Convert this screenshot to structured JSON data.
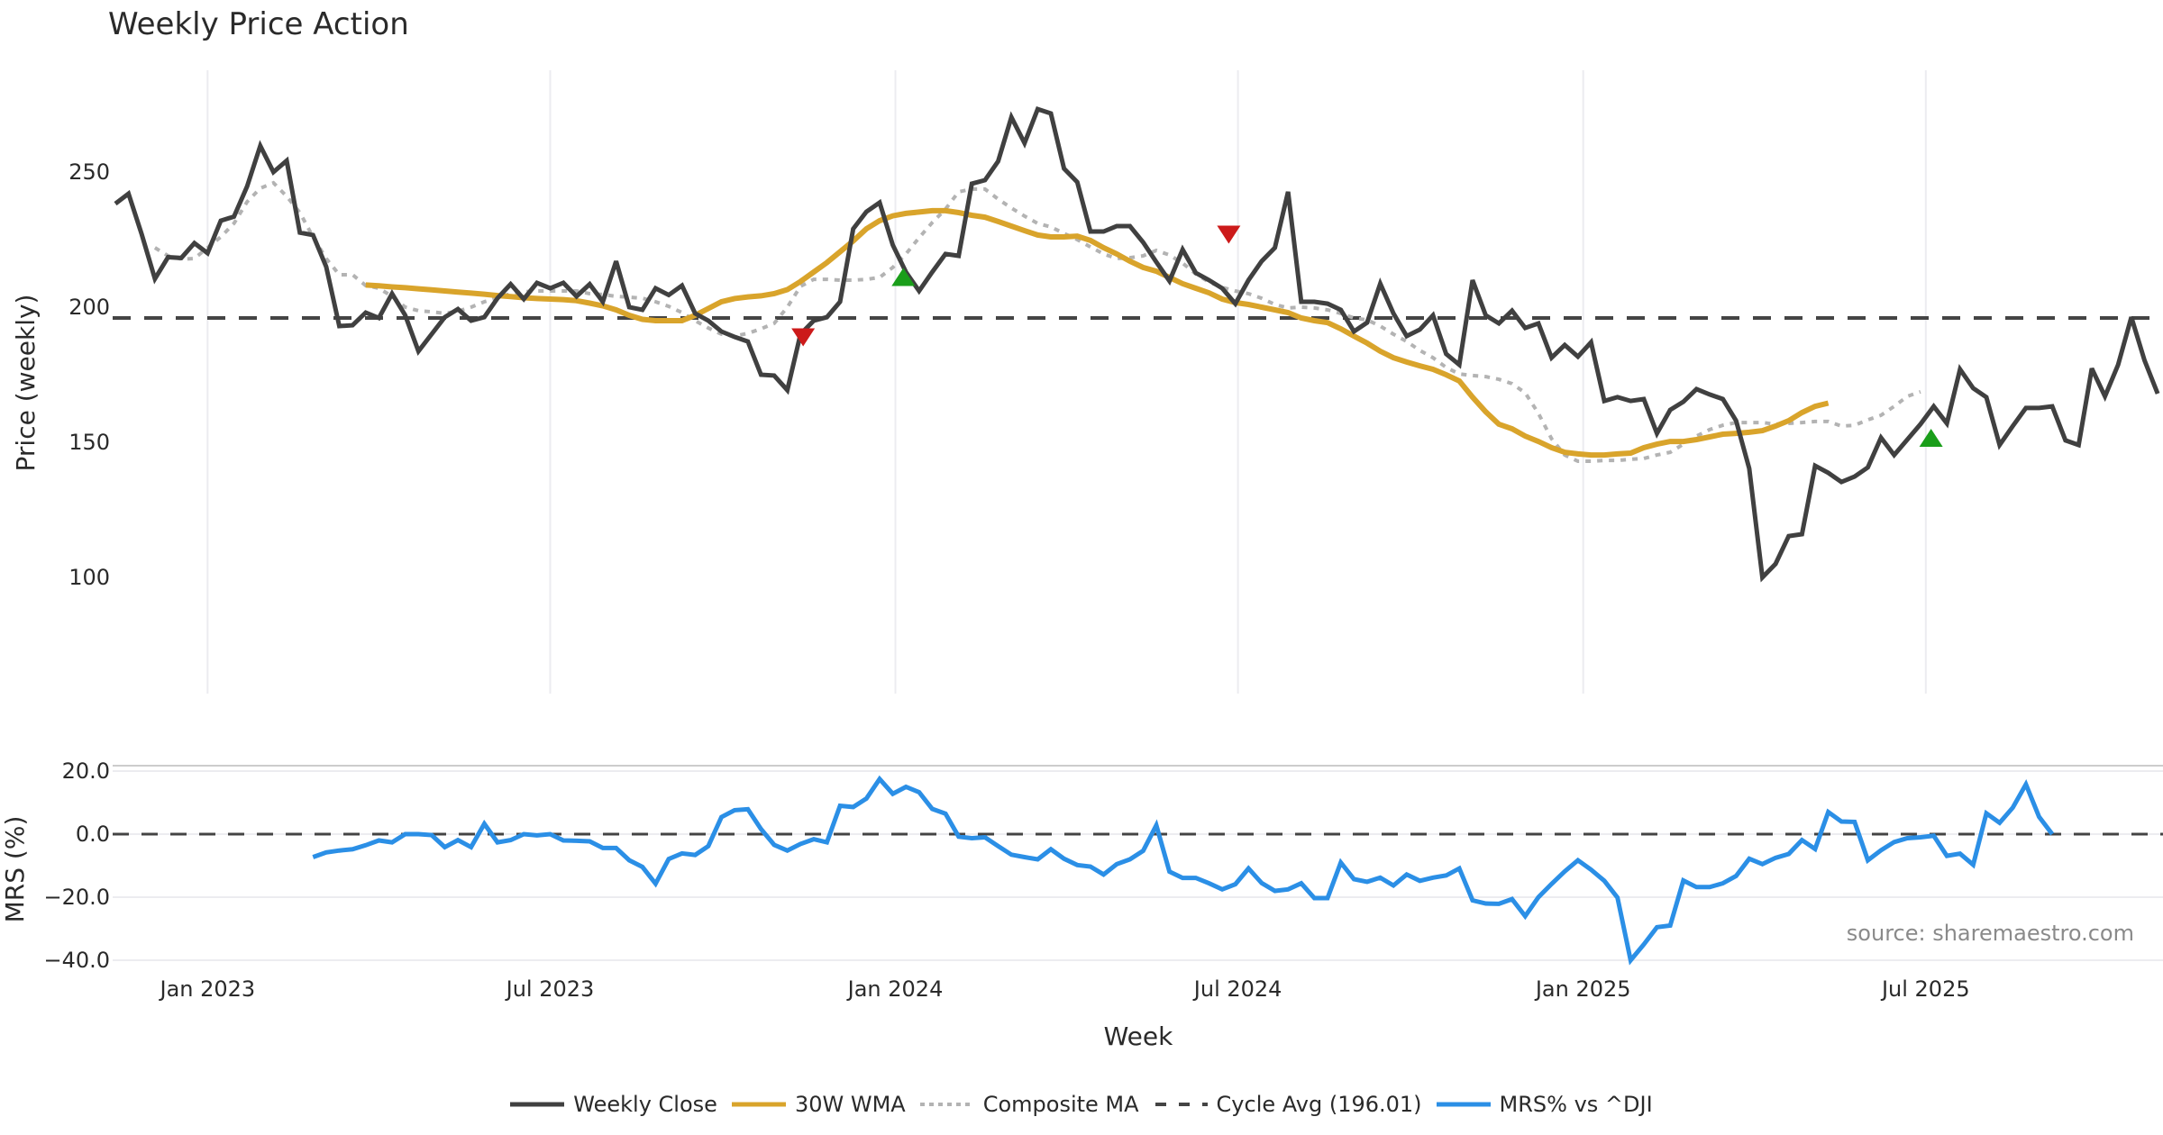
{
  "chart_data": [
    {
      "panel": "price",
      "type": "line",
      "title": "Weekly Price Action",
      "ylabel": "Price (weekly)",
      "xlabel": "",
      "ylim": [
        86,
        285
      ],
      "yticks": [
        100,
        150,
        200,
        250
      ],
      "grid": "vertical",
      "x_tick_labels": [
        "Jan 2023",
        "Jul 2023",
        "Jan 2024",
        "Jul 2024",
        "Jan 2025",
        "Jul 2025"
      ],
      "x_tick_weeks": [
        7,
        33,
        59.2,
        85.2,
        111.4,
        137.4
      ],
      "series": [
        {
          "name": "Weekly Close",
          "color": "#404040",
          "style": "solid",
          "start_week": 0,
          "values": [
            238.3,
            242.0,
            227.0,
            210.5,
            218.5,
            218.2,
            223.7,
            220.0,
            232.0,
            233.5,
            244.7,
            259.7,
            250.0,
            254.2,
            227.6,
            226.7,
            215.0,
            193.0,
            193.3,
            198.0,
            196.0,
            205.0,
            197.0,
            183.7,
            190.0,
            196.3,
            199.3,
            195.0,
            196.3,
            203.3,
            208.5,
            203.0,
            209.0,
            207.0,
            209.0,
            204.0,
            208.5,
            202.0,
            217.0,
            200.0,
            199.0,
            207.0,
            204.5,
            208.0,
            197.7,
            195.0,
            191.0,
            189.0,
            187.3,
            175.0,
            174.7,
            169.3,
            190.0,
            195.0,
            196.3,
            202.0,
            229.0,
            235.3,
            238.7,
            223.0,
            213.0,
            206.0,
            213.0,
            219.7,
            219.0,
            245.7,
            247.0,
            254.0,
            270.3,
            260.7,
            273.3,
            271.7,
            251.3,
            246.3,
            228.0,
            228.0,
            230.0,
            230.0,
            224.0,
            216.7,
            209.7,
            221.3,
            212.7,
            210.0,
            207.0,
            201.3,
            210.0,
            217.0,
            222.0,
            242.7,
            202.0,
            202.0,
            201.3,
            199.0,
            191.0,
            194.3,
            208.7,
            197.7,
            189.3,
            191.7,
            197.0,
            182.7,
            178.7,
            210.0,
            197.0,
            194.0,
            198.7,
            192.3,
            194.0,
            181.3,
            186.0,
            181.7,
            187.0,
            165.3,
            166.7,
            165.3,
            166.0,
            153.3,
            162.0,
            165.0,
            169.7,
            167.7,
            166.0,
            158.0,
            140.3,
            100.0,
            105.0,
            115.3,
            116.0,
            141.3,
            138.7,
            135.3,
            137.3,
            140.7,
            151.7,
            145.3,
            151.0,
            156.7,
            163.3,
            157.0,
            177.0,
            170.0,
            166.7,
            149.0,
            156.0,
            162.7,
            162.7,
            163.3,
            150.7,
            149.0,
            177.3,
            167.0,
            178.7,
            196.3,
            180.3,
            168.0
          ]
        },
        {
          "name": "30W WMA",
          "color": "#d9a42b",
          "style": "solid",
          "start_week": 19,
          "values": [
            208.2,
            207.9,
            207.5,
            207.2,
            206.8,
            206.4,
            206.0,
            205.6,
            205.2,
            204.8,
            204.3,
            203.9,
            203.5,
            203.2,
            203.0,
            202.8,
            202.4,
            201.5,
            200.5,
            199.0,
            197.0,
            195.5,
            195.0,
            195.0,
            195.0,
            197.0,
            199.5,
            202.0,
            203.2,
            203.8,
            204.2,
            205.0,
            206.5,
            209.5,
            213.0,
            216.5,
            220.5,
            224.5,
            229.0,
            232.0,
            233.8,
            234.7,
            235.2,
            235.7,
            235.7,
            235.0,
            234.0,
            233.3,
            231.7,
            230.0,
            228.3,
            226.7,
            226.0,
            226.0,
            226.3,
            224.7,
            222.0,
            219.7,
            217.0,
            214.7,
            213.3,
            211.0,
            208.7,
            207.0,
            205.3,
            203.0,
            201.7,
            201.0,
            200.0,
            199.0,
            198.0,
            196.0,
            195.0,
            194.3,
            192.0,
            189.3,
            186.7,
            183.7,
            181.3,
            179.7,
            178.3,
            177.0,
            175.0,
            172.7,
            166.7,
            161.3,
            156.7,
            155.0,
            152.3,
            150.3,
            148.0,
            146.3,
            145.7,
            145.3,
            145.3,
            145.7,
            146.0,
            148.0,
            149.3,
            150.3,
            150.3,
            151.0,
            152.0,
            153.0,
            153.3,
            153.7,
            154.3,
            156.0,
            158.0,
            161.0,
            163.3,
            164.5
          ]
        },
        {
          "name": "Composite MA",
          "color": "#b3b3b3",
          "style": "dotted",
          "start_week": 3,
          "values": [
            222.0,
            219.0,
            217.8,
            218.0,
            222.0,
            226.0,
            231.0,
            239.0,
            244.0,
            246.0,
            241.0,
            235.0,
            226.0,
            218.0,
            212.0,
            212.0,
            208.0,
            207.0,
            204.0,
            200.0,
            198.7,
            198.3,
            197.7,
            198.5,
            200.0,
            202.0,
            203.5,
            205.0,
            205.7,
            206.0,
            206.0,
            206.0,
            206.0,
            205.0,
            204.7,
            204.0,
            203.7,
            203.3,
            202.0,
            200.3,
            198.0,
            195.0,
            192.3,
            190.0,
            189.3,
            190.3,
            192.0,
            194.0,
            200.0,
            207.7,
            210.3,
            210.3,
            210.0,
            210.0,
            210.3,
            211.0,
            214.7,
            219.7,
            225.7,
            231.3,
            236.3,
            242.7,
            243.7,
            243.7,
            240.0,
            236.7,
            233.7,
            231.0,
            229.7,
            227.3,
            225.0,
            222.3,
            219.7,
            218.0,
            218.3,
            219.0,
            221.0,
            219.3,
            216.3,
            212.3,
            209.3,
            207.3,
            206.0,
            205.0,
            203.3,
            201.0,
            199.7,
            200.0,
            199.7,
            199.0,
            197.7,
            196.0,
            195.3,
            193.0,
            190.0,
            187.3,
            184.0,
            181.3,
            177.7,
            175.3,
            174.7,
            174.3,
            173.3,
            171.7,
            168.3,
            160.7,
            151.3,
            145.3,
            143.0,
            143.0,
            143.3,
            143.3,
            143.7,
            144.0,
            145.3,
            146.3,
            149.3,
            152.3,
            154.7,
            156.3,
            157.3,
            157.3,
            157.3,
            156.7,
            157.0,
            157.3,
            157.7,
            157.7,
            156.0,
            156.3,
            158.3,
            160.0,
            163.3,
            167.0,
            168.7
          ]
        },
        {
          "name": "Cycle Avg (196.01)",
          "color": "#444444",
          "style": "dashed",
          "value": 196.01
        }
      ],
      "markers": [
        {
          "type": "sell",
          "shape": "triangle-down",
          "color": "#cc1a1a",
          "week": 52.2,
          "value": 189.5
        },
        {
          "type": "buy",
          "shape": "triangle-up",
          "color": "#1a9e1a",
          "week": 59.8,
          "value": 210.5
        },
        {
          "type": "sell",
          "shape": "triangle-down",
          "color": "#cc1a1a",
          "week": 84.5,
          "value": 227.5
        },
        {
          "type": "buy",
          "shape": "triangle-up",
          "color": "#1a9e1a",
          "week": 137.8,
          "value": 151.0
        }
      ]
    },
    {
      "panel": "mrs",
      "type": "line",
      "title": "",
      "ylabel": "MRS (%)",
      "xlabel": "Week",
      "ylim": [
        -41,
        22
      ],
      "yticks": [
        -40.0,
        -20.0,
        0.0,
        20.0
      ],
      "grid": "horizontal",
      "x_tick_labels": [
        "Jan 2023",
        "Jul 2023",
        "Jan 2024",
        "Jul 2024",
        "Jan 2025",
        "Jul 2025"
      ],
      "series": [
        {
          "name": "MRS% vs ^DJI",
          "color": "#2b8fe6",
          "style": "solid",
          "start_week": 15,
          "values": [
            -7.3,
            -5.8,
            -5.2,
            -4.8,
            -3.5,
            -2.0,
            -2.6,
            0.0,
            0.0,
            -0.3,
            -4.1,
            -1.9,
            -4.1,
            3.3,
            -2.6,
            -1.9,
            0.0,
            -0.4,
            0.0,
            -2.0,
            -2.1,
            -2.3,
            -4.4,
            -4.4,
            -8.3,
            -10.4,
            -15.7,
            -7.9,
            -6.1,
            -6.6,
            -3.8,
            5.4,
            7.6,
            7.9,
            1.6,
            -3.4,
            -5.2,
            -3.1,
            -1.6,
            -2.6,
            9.0,
            8.6,
            11.3,
            17.5,
            12.8,
            15.0,
            13.3,
            8.0,
            6.5,
            -0.8,
            -1.3,
            -1.0,
            -3.8,
            -6.5,
            -7.3,
            -8.0,
            -4.8,
            -7.8,
            -9.8,
            -10.3,
            -12.8,
            -9.5,
            -8.0,
            -5.3,
            2.8,
            -11.9,
            -13.9,
            -13.9,
            -15.6,
            -17.5,
            -15.9,
            -10.9,
            -15.5,
            -18.0,
            -17.5,
            -15.6,
            -20.3,
            -20.3,
            -9.0,
            -14.3,
            -15.1,
            -13.8,
            -16.3,
            -12.8,
            -14.8,
            -13.8,
            -13.1,
            -10.9,
            -21.0,
            -22.0,
            -22.1,
            -20.6,
            -26.0,
            -20.0,
            -15.8,
            -11.8,
            -8.3,
            -11.3,
            -14.8,
            -20.1,
            -40.0,
            -35.0,
            -29.5,
            -29.0,
            -14.7,
            -16.8,
            -16.8,
            -15.6,
            -13.3,
            -7.8,
            -9.5,
            -7.5,
            -6.3,
            -1.9,
            -4.7,
            7.0,
            4.0,
            3.9,
            -8.3,
            -5.1,
            -2.5,
            -1.3,
            -1.0,
            -0.5,
            -6.9,
            -6.2,
            -9.7,
            6.6,
            3.6,
            8.4,
            15.8,
            5.5,
            0.0
          ]
        },
        {
          "name": "zero-line",
          "color": "#444444",
          "style": "dashed",
          "value": 0.0
        }
      ],
      "annotations": [
        "source: sharemaestro.com"
      ]
    }
  ],
  "legend": {
    "placement": "bottom-center",
    "entries": [
      {
        "label": "Weekly Close",
        "color": "#404040",
        "style": "solid"
      },
      {
        "label": "30W WMA",
        "color": "#d9a42b",
        "style": "solid"
      },
      {
        "label": "Composite MA",
        "color": "#b3b3b3",
        "style": "dotted"
      },
      {
        "label": "Cycle Avg (196.01)",
        "color": "#444444",
        "style": "dashed"
      },
      {
        "label": "MRS% vs ^DJI",
        "color": "#2b8fe6",
        "style": "solid"
      }
    ]
  },
  "labels": {
    "title": "Weekly Price Action",
    "price_ylabel": "Price (weekly)",
    "mrs_ylabel": "MRS (%)",
    "xlabel": "Week",
    "source": "source: sharemaestro.com"
  }
}
